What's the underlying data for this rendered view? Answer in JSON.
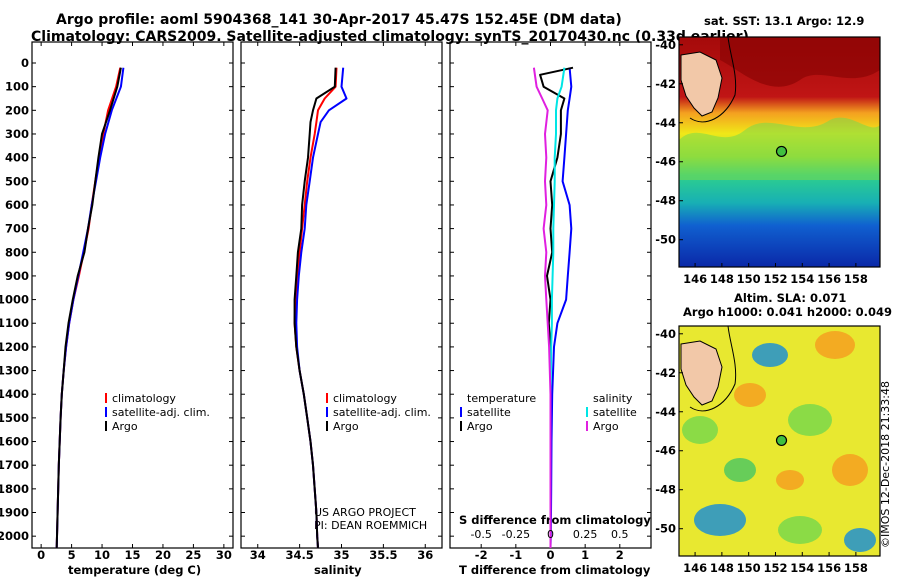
{
  "title": {
    "line1": "Argo profile: aoml 5904368_141 30-Apr-2017 45.47S 152.45E (DM data)",
    "line2": "Climatology: CARS2009. Satellite-adjusted climatology: synTS_20170430.nc (0.33d earlier)"
  },
  "colors": {
    "climatology": "#ff0000",
    "satellite": "#0000ff",
    "argo": "#000000",
    "sat_salinity": "#00e5e5",
    "argo_salinity": "#e020e0"
  },
  "chart_data": [
    {
      "type": "line",
      "name": "temperature",
      "xlabel": "temperature (deg C)",
      "xlim": [
        -1.5,
        31.5
      ],
      "ylim": [
        2050,
        0
      ],
      "xticks": [
        "0",
        "5",
        "10",
        "15",
        "20",
        "25",
        "30"
      ],
      "xtick_values": [
        0,
        5,
        10,
        15,
        20,
        25,
        30
      ],
      "yticks": [
        "0",
        "100",
        "200",
        "300",
        "400",
        "500",
        "600",
        "700",
        "800",
        "900",
        "1000",
        "1100",
        "1200",
        "1300",
        "1400",
        "1500",
        "1600",
        "1700",
        "1800",
        "1900",
        "2000"
      ],
      "legend": [
        "climatology",
        "satellite-adj. clim.",
        "Argo"
      ],
      "series": [
        {
          "name": "climatology",
          "depth": [
            20,
            100,
            200,
            300,
            400,
            500,
            600,
            700,
            800,
            900,
            1000,
            1100,
            1200,
            1300,
            1400,
            1500,
            1600,
            1700,
            1800,
            1900,
            2000,
            2050
          ],
          "values": [
            13.0,
            12.3,
            11.0,
            10.2,
            9.5,
            8.9,
            8.3,
            7.8,
            7.0,
            6.2,
            5.3,
            4.6,
            4.1,
            3.7,
            3.4,
            3.2,
            3.05,
            2.9,
            2.8,
            2.7,
            2.6,
            2.55
          ]
        },
        {
          "name": "satellite-adj. clim.",
          "depth": [
            20,
            100,
            200,
            300,
            400,
            500,
            600,
            700,
            800,
            900,
            1000,
            1100,
            1200,
            1300,
            1400,
            1500,
            1600,
            1700,
            1800,
            1900,
            2000,
            2050
          ],
          "values": [
            13.5,
            13.1,
            11.6,
            10.5,
            9.7,
            9.0,
            8.3,
            7.7,
            6.9,
            6.1,
            5.3,
            4.6,
            4.1,
            3.7,
            3.4,
            3.2,
            3.05,
            2.9,
            2.8,
            2.7,
            2.6,
            2.55
          ]
        },
        {
          "name": "Argo",
          "depth": [
            20,
            100,
            200,
            300,
            400,
            500,
            600,
            700,
            800,
            900,
            1000,
            1100,
            1200,
            1300,
            1400,
            1500,
            1600,
            1700,
            1800,
            1900,
            2000,
            2050
          ],
          "values": [
            13.1,
            12.5,
            11.3,
            10.0,
            9.4,
            8.9,
            8.4,
            7.7,
            7.1,
            6.0,
            5.2,
            4.5,
            4.0,
            3.7,
            3.4,
            3.2,
            3.05,
            2.9,
            2.8,
            2.7,
            2.6,
            2.55
          ]
        }
      ]
    },
    {
      "type": "line",
      "name": "salinity",
      "xlabel": "salinity",
      "xlim": [
        33.8,
        36.2
      ],
      "ylim": [
        2050,
        0
      ],
      "xticks": [
        "34",
        "34.5",
        "35",
        "35.5",
        "36"
      ],
      "xtick_values": [
        34,
        34.5,
        35,
        35.5,
        36
      ],
      "legend": [
        "climatology",
        "satellite-adj. clim.",
        "Argo"
      ],
      "annotation": [
        "US ARGO PROJECT",
        "PI: DEAN ROEMMICH"
      ],
      "series": [
        {
          "name": "climatology",
          "depth": [
            20,
            100,
            150,
            200,
            250,
            300,
            400,
            500,
            600,
            700,
            800,
            900,
            1000,
            1100,
            1200,
            1300,
            1400,
            1500,
            1600,
            1700,
            1800,
            1900,
            2000,
            2050
          ],
          "values": [
            34.94,
            34.93,
            34.8,
            34.72,
            34.7,
            34.68,
            34.63,
            34.59,
            34.56,
            34.53,
            34.5,
            34.47,
            34.45,
            34.44,
            34.46,
            34.5,
            34.55,
            34.59,
            34.63,
            34.66,
            34.68,
            34.7,
            34.71,
            34.72
          ]
        },
        {
          "name": "satellite-adj. clim.",
          "depth": [
            20,
            100,
            150,
            200,
            250,
            300,
            400,
            500,
            600,
            700,
            800,
            900,
            1000,
            1100,
            1200,
            1300,
            1400,
            1500,
            1600,
            1700,
            1800,
            1900,
            2000,
            2050
          ],
          "values": [
            35.02,
            35.0,
            35.06,
            34.85,
            34.75,
            34.72,
            34.66,
            34.62,
            34.58,
            34.56,
            34.52,
            34.49,
            34.47,
            34.46,
            34.47,
            34.5,
            34.55,
            34.59,
            34.63,
            34.66,
            34.68,
            34.7,
            34.71,
            34.72
          ]
        },
        {
          "name": "Argo",
          "depth": [
            20,
            100,
            150,
            200,
            250,
            300,
            400,
            500,
            600,
            700,
            800,
            900,
            1000,
            1100,
            1200,
            1300,
            1400,
            1500,
            1600,
            1700,
            1800,
            1900,
            2000,
            2050
          ],
          "values": [
            34.93,
            34.92,
            34.7,
            34.66,
            34.63,
            34.62,
            34.6,
            34.56,
            34.53,
            34.52,
            34.48,
            34.46,
            34.44,
            34.44,
            34.46,
            34.5,
            34.55,
            34.59,
            34.63,
            34.66,
            34.68,
            34.7,
            34.71,
            34.72
          ]
        }
      ]
    },
    {
      "type": "line",
      "name": "difference",
      "xlabel": "T difference from climatology",
      "xlabel2": "S difference from climatology",
      "xlim": [
        -2.9,
        2.9
      ],
      "ylim": [
        2050,
        0
      ],
      "xticks": [
        "-2",
        "-1",
        "0",
        "1",
        "2"
      ],
      "xtick_values": [
        -2,
        -1,
        0,
        1,
        2
      ],
      "xticks_s": [
        "-0.5",
        "-0.25",
        "0",
        "0.25",
        "0.5"
      ],
      "xtick_s_values": [
        -0.5,
        -0.25,
        0,
        0.25,
        0.5
      ],
      "legend_temperature": [
        "temperature",
        "satellite",
        "Argo"
      ],
      "legend_salinity": [
        "salinity",
        "satellite",
        "Argo"
      ],
      "series": [
        {
          "name": "temperature satellite",
          "depth": [
            20,
            100,
            150,
            200,
            300,
            400,
            500,
            600,
            700,
            800,
            900,
            1000,
            1100,
            1200,
            1400,
            1600,
            1800,
            2000,
            2050
          ],
          "values": [
            0.55,
            0.6,
            0.55,
            0.5,
            0.45,
            0.4,
            0.35,
            0.55,
            0.6,
            0.55,
            0.5,
            0.45,
            0.2,
            0.1,
            0.05,
            0.03,
            0.02,
            0.01,
            0.0
          ]
        },
        {
          "name": "temperature Argo",
          "depth": [
            20,
            50,
            100,
            150,
            200,
            300,
            400,
            500,
            600,
            700,
            800,
            900,
            1000,
            1100,
            1200,
            1400,
            1600,
            1800,
            2000,
            2050
          ],
          "values": [
            0.65,
            -0.3,
            -0.2,
            0.4,
            0.3,
            0.3,
            0.2,
            0.0,
            0.05,
            0.0,
            0.05,
            -0.1,
            0.0,
            -0.05,
            0.0,
            0.0,
            0.0,
            0.0,
            0.0,
            0.0
          ]
        },
        {
          "name": "salinity satellite",
          "depth": [
            20,
            100,
            150,
            200,
            300,
            400,
            500,
            600,
            700,
            800,
            900,
            1000,
            1100,
            1200,
            1400,
            1600,
            1800,
            2000,
            2050
          ],
          "values": [
            0.1,
            0.08,
            0.05,
            0.04,
            0.04,
            0.03,
            0.03,
            0.025,
            0.02,
            0.02,
            0.015,
            0.01,
            0.01,
            0.005,
            0.0,
            0.0,
            0.0,
            0.0,
            0.0
          ]
        },
        {
          "name": "salinity Argo",
          "depth": [
            20,
            100,
            150,
            200,
            300,
            400,
            500,
            600,
            700,
            800,
            900,
            1000,
            1100,
            1200,
            1400,
            1600,
            1800,
            2000,
            2050
          ],
          "values": [
            -0.12,
            -0.1,
            -0.06,
            -0.02,
            -0.04,
            -0.03,
            -0.04,
            -0.03,
            -0.05,
            -0.03,
            -0.04,
            -0.03,
            -0.02,
            -0.01,
            0.0,
            0.0,
            0.0,
            0.0,
            0.0
          ]
        }
      ]
    },
    {
      "type": "heatmap",
      "name": "sst-map",
      "title": "sat. SST: 13.1 Argo: 12.9",
      "xlim": [
        144.8,
        159.8
      ],
      "ylim": [
        -51.4,
        -39.6
      ],
      "xticks": [
        "146",
        "148",
        "150",
        "152",
        "154",
        "156",
        "158"
      ],
      "xtick_values": [
        146,
        148,
        150,
        152,
        154,
        156,
        158
      ],
      "yticks": [
        "-40",
        "-42",
        "-44",
        "-46",
        "-48",
        "-50"
      ],
      "ytick_values": [
        -40,
        -42,
        -44,
        -46,
        -48,
        -50
      ],
      "marker": [
        152.45,
        -45.47
      ]
    },
    {
      "type": "heatmap",
      "name": "sla-map",
      "title": "Altim. SLA: 0.071",
      "subtitle": "Argo h1000: 0.041 h2000: 0.049",
      "xlim": [
        144.8,
        159.8
      ],
      "ylim": [
        -51.4,
        -39.6
      ],
      "xticks": [
        "146",
        "148",
        "150",
        "152",
        "154",
        "156",
        "158"
      ],
      "xtick_values": [
        146,
        148,
        150,
        152,
        154,
        156,
        158
      ],
      "yticks": [
        "-40",
        "-42",
        "-44",
        "-46",
        "-48",
        "-50"
      ],
      "ytick_values": [
        -40,
        -42,
        -44,
        -46,
        -48,
        -50
      ],
      "marker": [
        152.45,
        -45.47
      ]
    }
  ],
  "watermark": "©IMOS 12-Dec-2018 21:33:48"
}
